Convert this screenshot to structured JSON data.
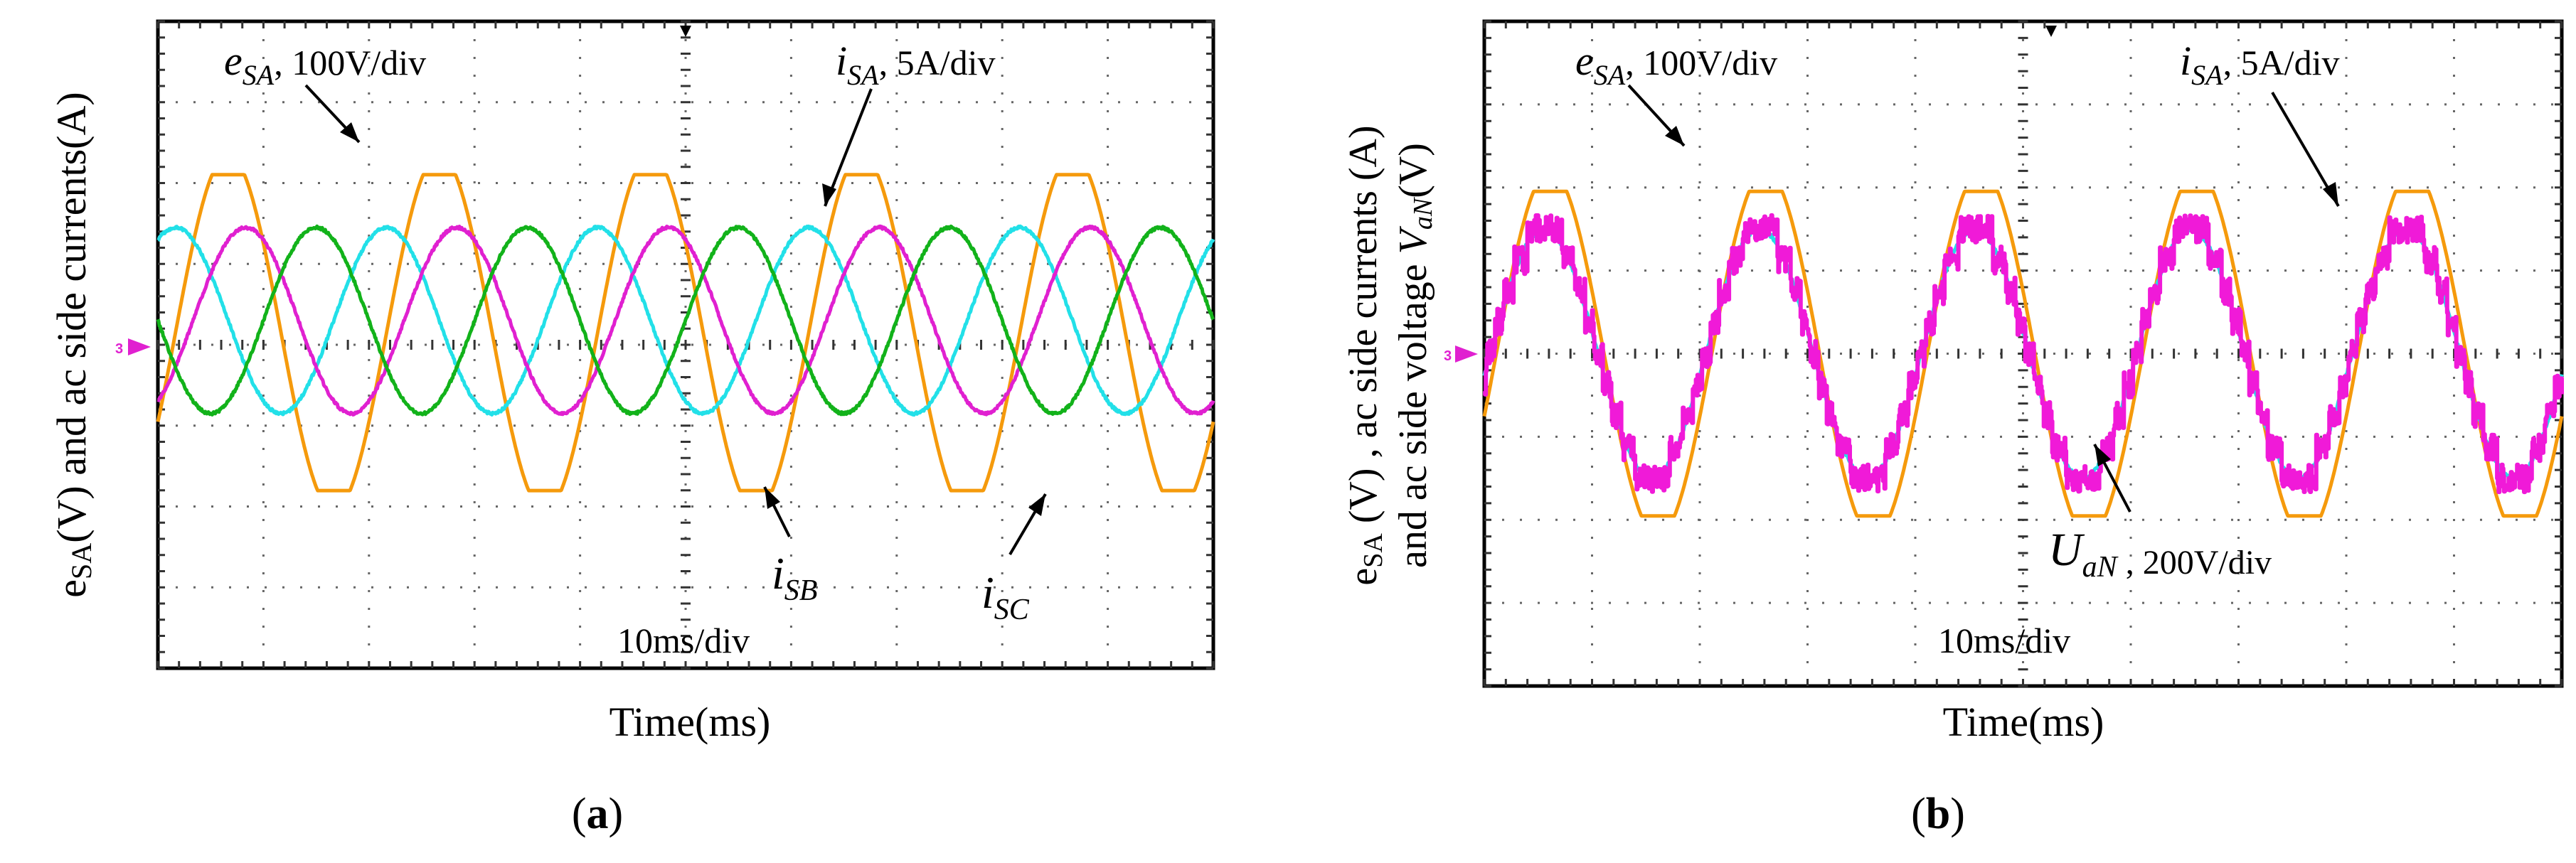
{
  "figure": {
    "panels": [
      {
        "id": "a",
        "panel_label": "a",
        "ylabel": [
          "e",
          "SA",
          "(V) and ac side currents(A)"
        ],
        "xlabel": "Time(ms)",
        "timebase": "10ms/div",
        "channel_marker": "3",
        "annotations": {
          "esa": {
            "sym": "e",
            "sub": "SA",
            "rest": ", 100V/div"
          },
          "isa": {
            "sym": "i",
            "sub": "SA",
            "rest": ", 5A/div"
          },
          "isb": {
            "sym": "i",
            "sub": "SB"
          },
          "isc": {
            "sym": "i",
            "sub": "SC"
          }
        }
      },
      {
        "id": "b",
        "panel_label": "b",
        "ylabel_line1": [
          "e",
          "SA",
          " (V) , ac side currents (A)"
        ],
        "ylabel_line2": [
          "and ac side voltage ",
          "V",
          "aN",
          "(V)"
        ],
        "xlabel": "Time(ms)",
        "timebase": "10ms/div",
        "channel_marker": "3",
        "annotations": {
          "esa": {
            "sym": "e",
            "sub": "SA",
            "rest": ", 100V/div"
          },
          "isa": {
            "sym": "i",
            "sub": "SA",
            "rest": ", 5A/div"
          },
          "uan": {
            "sym": "U",
            "sub": "aN",
            "rest": " , 200V/div"
          }
        }
      }
    ],
    "colors": {
      "esa": "#f59a0c",
      "isa": "#22e0e8",
      "isb": "#e020d0",
      "isc": "#12b21a",
      "uan": "#f01ad8"
    }
  },
  "chart_data": [
    {
      "type": "line",
      "title": "(a)",
      "xlabel": "Time(ms)",
      "ylabel": "eSA(V) and ac side currents(A)",
      "grid": true,
      "x_divisions": 10,
      "y_divisions": 8,
      "time_per_div_ms": 10,
      "xlim_ms": [
        0,
        100
      ],
      "ylim_div": [
        -4,
        4
      ],
      "series": [
        {
          "name": "eSA",
          "scale": "100V/div",
          "frequency_hz": 50,
          "amplitude_div": 2.1,
          "offset_div": 0.15,
          "phase_deg": -30,
          "wave": "sine-flat-top"
        },
        {
          "name": "iSA",
          "scale": "5A/div",
          "frequency_hz": 50,
          "amplitude_div": 1.15,
          "offset_div": 0.3,
          "phase_deg": 60,
          "wave": "sine"
        },
        {
          "name": "iSB",
          "scale": "5A/div",
          "frequency_hz": 50,
          "amplitude_div": 1.15,
          "offset_div": 0.3,
          "phase_deg": -60,
          "wave": "sine"
        },
        {
          "name": "iSC",
          "scale": "5A/div",
          "frequency_hz": 50,
          "amplitude_div": 1.15,
          "offset_div": 0.3,
          "phase_deg": 180,
          "wave": "sine"
        }
      ]
    },
    {
      "type": "line",
      "title": "(b)",
      "xlabel": "Time(ms)",
      "ylabel": "eSA (V) , ac side currents (A) and ac side voltage VaN(V)",
      "grid": true,
      "x_divisions": 10,
      "y_divisions": 8,
      "time_per_div_ms": 10,
      "xlim_ms": [
        0,
        100
      ],
      "ylim_div": [
        -4,
        4
      ],
      "series": [
        {
          "name": "eSA",
          "scale": "100V/div",
          "frequency_hz": 50,
          "amplitude_div": 2.1,
          "offset_div": 0.0,
          "phase_deg": -20,
          "wave": "sine-flat-top"
        },
        {
          "name": "iSA",
          "scale": "5A/div",
          "frequency_hz": 50,
          "amplitude_div": 1.5,
          "offset_div": 0.0,
          "phase_deg": -10,
          "wave": "sine"
        },
        {
          "name": "UaN",
          "scale": "200V/div",
          "frequency_hz": 50,
          "amplitude_div": 1.5,
          "offset_div": 0.0,
          "phase_deg": -10,
          "wave": "staircase",
          "levels": 4
        }
      ]
    }
  ]
}
